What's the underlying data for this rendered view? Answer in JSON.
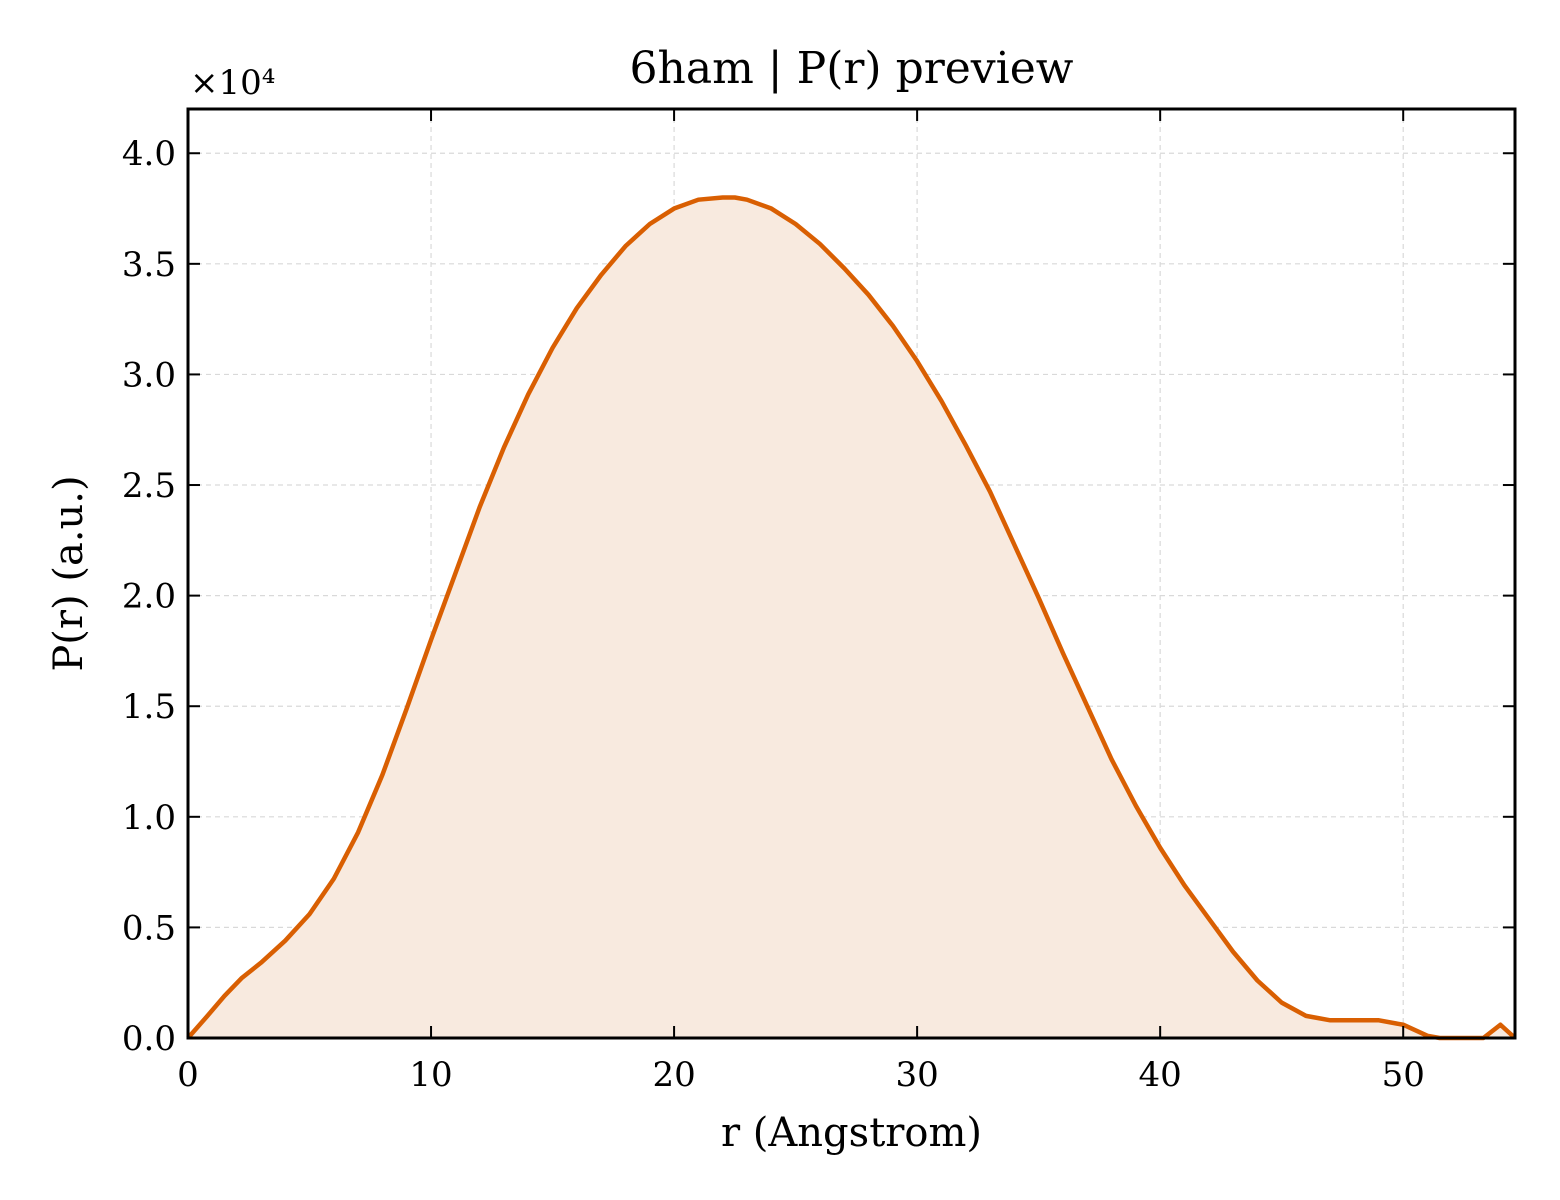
{
  "chart_data": {
    "type": "area",
    "title": "6ham | P(r) preview",
    "xlabel": "r (Angstrom)",
    "ylabel": "P(r) (a.u.)",
    "y_multiplier_label": "×10⁴",
    "xlim": [
      0,
      54.6
    ],
    "ylim": [
      0,
      4.2
    ],
    "xticks": [
      0,
      10,
      20,
      30,
      40,
      50
    ],
    "yticks": [
      0.0,
      0.5,
      1.0,
      1.5,
      2.0,
      2.5,
      3.0,
      3.5,
      4.0
    ],
    "xtick_labels": [
      "0",
      "10",
      "20",
      "30",
      "40",
      "50"
    ],
    "ytick_labels": [
      "0.0",
      "0.5",
      "1.0",
      "1.5",
      "2.0",
      "2.5",
      "3.0",
      "3.5",
      "4.0"
    ],
    "grid": true,
    "line_color": "#d95f02",
    "fill_color": "#f8eadf",
    "series": [
      {
        "x": [
          0,
          0.8,
          1.5,
          2.2,
          3.0,
          4.0,
          5.0,
          6.0,
          7.0,
          8.0,
          9.0,
          10.0,
          11.0,
          12.0,
          13.0,
          14.0,
          15.0,
          16.0,
          17.0,
          18.0,
          19.0,
          20.0,
          21.0,
          22.0,
          22.5,
          23.0,
          24.0,
          25.0,
          26.0,
          27.0,
          28.0,
          29.0,
          30.0,
          31.0,
          32.0,
          33.0,
          34.0,
          35.0,
          36.0,
          37.0,
          38.0,
          39.0,
          40.0,
          41.0,
          42.0,
          43.0,
          44.0,
          45.0,
          46.0,
          47.0,
          48.0,
          49.0,
          50.0,
          51.0,
          51.5,
          52.5,
          53.3,
          54.0,
          54.6
        ],
        "y": [
          0.0,
          0.1,
          0.19,
          0.27,
          0.34,
          0.44,
          0.56,
          0.72,
          0.93,
          1.19,
          1.49,
          1.8,
          2.1,
          2.4,
          2.67,
          2.91,
          3.12,
          3.3,
          3.45,
          3.58,
          3.68,
          3.75,
          3.79,
          3.8,
          3.8,
          3.79,
          3.75,
          3.68,
          3.59,
          3.48,
          3.36,
          3.22,
          3.06,
          2.88,
          2.68,
          2.47,
          2.23,
          1.99,
          1.74,
          1.5,
          1.26,
          1.05,
          0.86,
          0.69,
          0.54,
          0.39,
          0.26,
          0.16,
          0.1,
          0.08,
          0.08,
          0.08,
          0.06,
          0.01,
          0.0,
          0.0,
          0.0,
          0.06,
          0.0
        ]
      }
    ]
  }
}
